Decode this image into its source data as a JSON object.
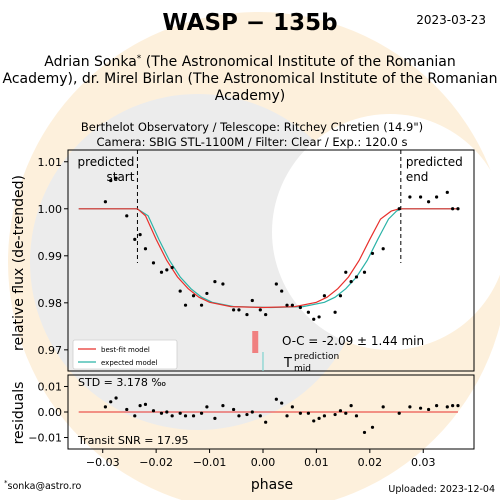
{
  "header": {
    "title": "WASP − 135b",
    "date": "2023-03-23",
    "authors": "Adrian Sonka* (The Astronomical Institute of the Romanian Academy), dr. Mirel Birlan (The Astronomical Institute of the Romanian Academy)",
    "authors_lines": [
      "Adrian Sonka",
      " (The Astronomical Institute of the Romanian",
      "Academy), dr. Mirel Birlan (The Astronomical Institute of the Romanian",
      "Academy)"
    ],
    "author_mark": "*",
    "observatory": "Berthelot Observatory / Telescope: Ritchey Chretien (14.9\")",
    "camera": "Camera: SBIG STL-1100M / Filter: Clear / Exp.: 120.0 s"
  },
  "footer": {
    "email_mark": "*",
    "email": "sonka@astro.ro",
    "uploaded": "Uploaded: 2023-12-04"
  },
  "colors": {
    "best_fit": "#e8302c",
    "expected": "#2bb3a7",
    "oc_bar": "#f08080",
    "tmid_line": "#7fd3cf",
    "watermark_orange": "#fdf0dc",
    "watermark_gray": "#ececec"
  },
  "chart_data": [
    {
      "type": "scatter",
      "role": "light-curve",
      "ylabel": "relative flux (de-trended)",
      "xlim": [
        -0.0365,
        0.0395
      ],
      "ylim": [
        0.9655,
        1.0125
      ],
      "yticks": [
        0.97,
        0.98,
        0.99,
        1.0,
        1.01
      ],
      "ytick_labels": [
        "0.97",
        "0.98",
        "0.99",
        "1.00",
        "1.01"
      ],
      "grid": false,
      "legend_position": "bottom-left",
      "ingress_phase": -0.0235,
      "egress_phase": 0.0258,
      "predicted_start_label": [
        "predicted",
        "start"
      ],
      "predicted_end_label": [
        "predicted",
        "end"
      ],
      "oc_text": "O-C = -2.09 ± 1.44 min",
      "oc_offset_phase": -0.00145,
      "tmid_label": "T",
      "tmid_sup": "prediction",
      "tmid_sub": "mid",
      "series": [
        {
          "name": "best-fit model",
          "kind": "line",
          "x": [
            -0.0345,
            -0.0235,
            -0.022,
            -0.02,
            -0.018,
            -0.016,
            -0.014,
            -0.012,
            -0.01,
            -0.006,
            0.0,
            0.006,
            0.01,
            0.012,
            0.014,
            0.016,
            0.018,
            0.02,
            0.022,
            0.024,
            0.0255,
            0.0365
          ],
          "y": [
            1.0,
            1.0,
            0.9985,
            0.9935,
            0.989,
            0.9855,
            0.983,
            0.9812,
            0.9801,
            0.9792,
            0.979,
            0.9792,
            0.9801,
            0.9812,
            0.983,
            0.9855,
            0.989,
            0.9935,
            0.9978,
            0.9995,
            1.0,
            1.0
          ]
        },
        {
          "name": "expected model",
          "kind": "line",
          "x": [
            -0.0345,
            -0.0235,
            -0.0215,
            -0.0195,
            -0.0175,
            -0.0155,
            -0.0135,
            -0.0115,
            -0.0095,
            -0.0055,
            0.0015,
            0.0075,
            0.0115,
            0.0135,
            0.0155,
            0.0175,
            0.0195,
            0.0215,
            0.0235,
            0.025,
            0.0258,
            0.0365
          ],
          "y": [
            1.0,
            1.0,
            0.9985,
            0.9935,
            0.989,
            0.9855,
            0.983,
            0.9812,
            0.9801,
            0.9792,
            0.979,
            0.9792,
            0.9801,
            0.9812,
            0.983,
            0.9855,
            0.989,
            0.9935,
            0.9978,
            0.9995,
            1.0,
            1.0
          ]
        },
        {
          "name": "data",
          "kind": "points",
          "x": [
            -0.0295,
            -0.0285,
            -0.0275,
            -0.0255,
            -0.024,
            -0.023,
            -0.022,
            -0.0205,
            -0.019,
            -0.018,
            -0.017,
            -0.0155,
            -0.0145,
            -0.013,
            -0.0115,
            -0.0105,
            -0.009,
            -0.0075,
            -0.0055,
            -0.0045,
            -0.003,
            -0.002,
            -0.0005,
            0.0005,
            0.0025,
            0.0035,
            0.0045,
            0.0055,
            0.007,
            0.0085,
            0.0095,
            0.0105,
            0.0115,
            0.0135,
            0.0145,
            0.0155,
            0.0165,
            0.0175,
            0.019,
            0.0205,
            0.0225,
            0.0255,
            0.0275,
            0.0295,
            0.031,
            0.0325,
            0.0345,
            0.0355,
            0.0365
          ],
          "y": [
            1.0015,
            1.006,
            1.0065,
            0.9985,
            0.9935,
            0.9945,
            0.9915,
            0.9885,
            0.9865,
            0.987,
            0.9875,
            0.9825,
            0.9795,
            0.9815,
            0.9795,
            0.982,
            0.9845,
            0.984,
            0.9785,
            0.9785,
            0.9775,
            0.9805,
            0.9785,
            0.9775,
            0.984,
            0.9825,
            0.9795,
            0.9795,
            0.979,
            0.978,
            0.9765,
            0.977,
            0.9815,
            0.978,
            0.9815,
            0.9865,
            0.9845,
            0.9855,
            0.9865,
            0.9905,
            0.9915,
            1.0,
            1.0025,
            1.0025,
            1.0015,
            1.0025,
            1.0035,
            1.0,
            1.0
          ]
        }
      ]
    },
    {
      "type": "scatter",
      "role": "residuals",
      "xlabel": "phase",
      "ylabel": "residuals",
      "xlim": [
        -0.0365,
        0.0395
      ],
      "ylim": [
        -0.0145,
        0.0145
      ],
      "xticks": [
        -0.03,
        -0.02,
        -0.01,
        0.0,
        0.01,
        0.02,
        0.03
      ],
      "xtick_labels": [
        "−0.03",
        "−0.02",
        "−0.01",
        "0.00",
        "0.01",
        "0.02",
        "0.03"
      ],
      "yticks": [
        -0.01,
        0.0,
        0.01
      ],
      "ytick_labels": [
        "−0.01",
        "0.00",
        "0.01"
      ],
      "std_text": "STD = 3.178 ‰",
      "snr_text": "Transit SNR = 17.95",
      "zero_line": 0.0,
      "x": [
        -0.0295,
        -0.0285,
        -0.0275,
        -0.0255,
        -0.024,
        -0.023,
        -0.022,
        -0.0205,
        -0.019,
        -0.018,
        -0.017,
        -0.0155,
        -0.0145,
        -0.013,
        -0.0115,
        -0.0105,
        -0.009,
        -0.0075,
        -0.0055,
        -0.0045,
        -0.003,
        -0.002,
        -0.0005,
        0.0005,
        0.0025,
        0.0035,
        0.0045,
        0.0055,
        0.007,
        0.0085,
        0.0095,
        0.0105,
        0.0115,
        0.0135,
        0.0145,
        0.0155,
        0.0165,
        0.0175,
        0.019,
        0.0205,
        0.0225,
        0.0255,
        0.0275,
        0.0295,
        0.031,
        0.0325,
        0.0345,
        0.0355,
        0.0365
      ],
      "y": [
        0.002,
        0.004,
        0.0055,
        0.001,
        -0.0015,
        0.0025,
        0.003,
        0.0005,
        -0.0005,
        0.0,
        -0.0015,
        -0.0005,
        -0.0015,
        -0.0015,
        -0.0005,
        0.002,
        -0.0025,
        0.0025,
        0.001,
        -0.0015,
        -0.001,
        0.0,
        -0.0015,
        -0.004,
        0.005,
        0.0035,
        -0.0015,
        0.002,
        -0.0005,
        -0.0005,
        -0.0035,
        -0.0025,
        -0.0015,
        -0.001,
        0.0005,
        -0.0005,
        0.0025,
        -0.0015,
        -0.008,
        -0.006,
        0.002,
        -0.0005,
        0.002,
        0.0015,
        0.001,
        0.0025,
        0.002,
        0.0025,
        0.0025
      ]
    }
  ]
}
